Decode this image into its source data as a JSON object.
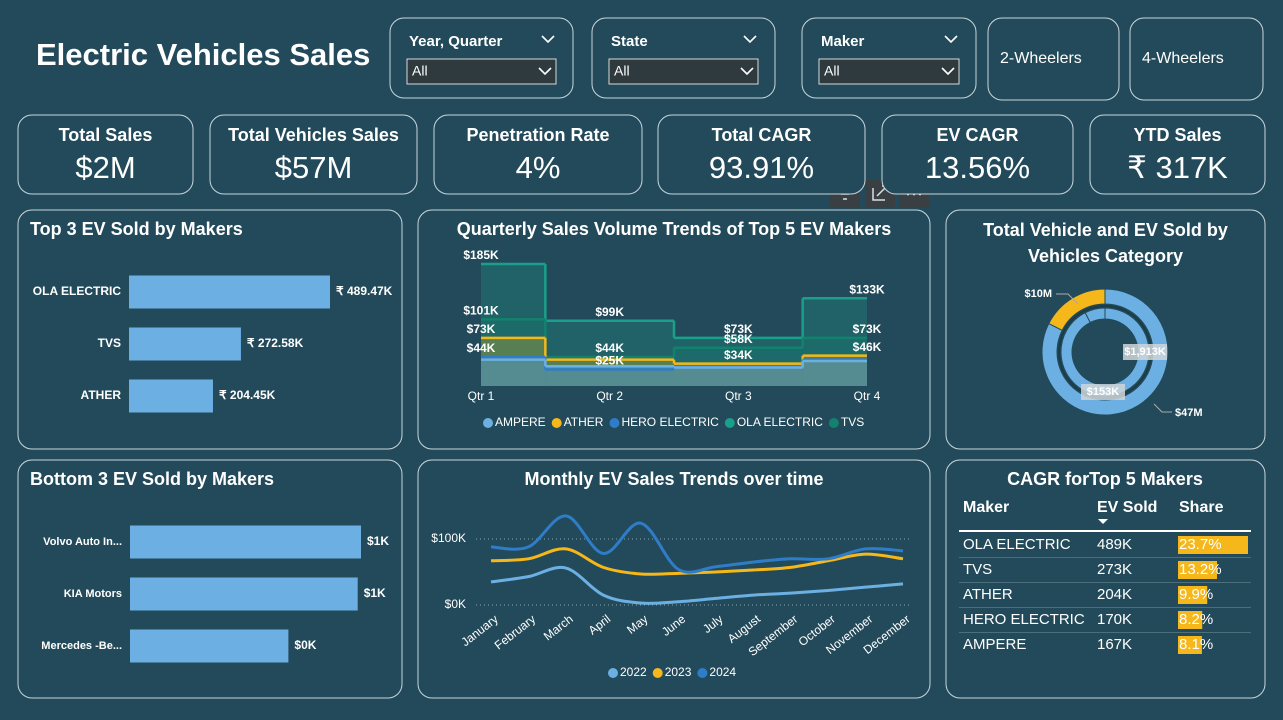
{
  "header": {
    "title": "Electric Vehicles Sales"
  },
  "slicers": [
    {
      "label": "Year, Quarter",
      "value": "All"
    },
    {
      "label": "State",
      "value": "All"
    },
    {
      "label": "Maker",
      "value": "All"
    }
  ],
  "buttons": [
    "2-Wheelers",
    "4-Wheelers"
  ],
  "kpis": [
    {
      "label": "Total Sales",
      "value": "$2M"
    },
    {
      "label": "Total Vehicles Sales",
      "value": "$57M"
    },
    {
      "label": "Penetration Rate",
      "value": "4%"
    },
    {
      "label": "Total CAGR",
      "value": "93.91%"
    },
    {
      "label": "EV CAGR",
      "value": "13.56%"
    },
    {
      "label": "YTD Sales",
      "value": "₹ 317K"
    }
  ],
  "chart_data": [
    {
      "type": "hbar",
      "title": "Top 3 EV Sold by Makers",
      "categories": [
        "OLA ELECTRIC",
        "TVS",
        "ATHER"
      ],
      "values": [
        489470,
        272580,
        204450
      ],
      "value_labels": [
        "₹ 489.47K",
        "₹ 272.58K",
        "₹ 204.45K"
      ],
      "color": "#6cb0e3"
    },
    {
      "type": "hbar",
      "title": "Bottom 3 EV Sold by Makers",
      "categories": [
        "Volvo Auto In...",
        "KIA Motors",
        "Mercedes -Be..."
      ],
      "values": [
        700,
        690,
        480
      ],
      "value_labels": [
        "$1K",
        "$1K",
        "$0K"
      ],
      "color": "#6cb0e3"
    },
    {
      "type": "step-area",
      "title": "Quarterly Sales Volume Trends of Top 5 EV Makers",
      "categories": [
        "Qtr 1",
        "Qtr 2",
        "Qtr 3",
        "Qtr 4"
      ],
      "legend": "bottom",
      "series": [
        {
          "name": "AMPERE",
          "color": "#6cb0e3",
          "values": [
            40000,
            30000,
            28000,
            38000
          ],
          "value_labels": [
            null,
            null,
            null,
            null
          ]
        },
        {
          "name": "ATHER",
          "color": "#f5b719",
          "values": [
            73000,
            40000,
            34000,
            46000
          ],
          "value_labels": [
            "$73K",
            null,
            "$34K",
            "$46K"
          ]
        },
        {
          "name": "HERO ELECTRIC",
          "color": "#2f7dc8",
          "values": [
            44000,
            25000,
            30000,
            40000
          ],
          "value_labels": [
            "$44K",
            "$25K",
            null,
            null
          ]
        },
        {
          "name": "OLA ELECTRIC",
          "color": "#1aa08a",
          "values": [
            185000,
            99000,
            73000,
            133000
          ],
          "value_labels": [
            "$185K",
            "$99K",
            "$73K",
            "$133K"
          ]
        },
        {
          "name": "TVS",
          "color": "#12826e",
          "values": [
            101000,
            44000,
            58000,
            73000
          ],
          "value_labels": [
            "$101K",
            "$44K",
            "$58K",
            "$73K"
          ]
        }
      ]
    },
    {
      "type": "donut",
      "title": "Total Vehicle and EV Sold by Vehicles Category",
      "series": [
        {
          "values": [
            47000000,
            10000000
          ],
          "value_labels": [
            "$47M",
            "$10M"
          ],
          "colors": [
            "#6cb0e3",
            "#f5b719"
          ]
        },
        {
          "values": [
            1913000,
            153000
          ],
          "value_labels": [
            "$1,913K",
            "$153K"
          ],
          "colors": [
            "#6cb0e3",
            "#6cb0e3"
          ]
        }
      ]
    },
    {
      "type": "line",
      "title": "Monthly EV Sales Trends over time",
      "categories": [
        "January",
        "February",
        "March",
        "April",
        "May",
        "June",
        "July",
        "August",
        "September",
        "October",
        "November",
        "December"
      ],
      "ylim": [
        0,
        150000
      ],
      "yticks": [
        {
          "value": 0,
          "label": "$0K"
        },
        {
          "value": 100000,
          "label": "$100K"
        }
      ],
      "grid": true,
      "legend": "bottom",
      "series": [
        {
          "name": "2022",
          "color": "#6cb0e3",
          "values": [
            35000,
            43000,
            56000,
            15000,
            3000,
            5000,
            10000,
            15000,
            18000,
            22000,
            27000,
            32000
          ]
        },
        {
          "name": "2023",
          "color": "#f5b719",
          "values": [
            67000,
            70000,
            85000,
            57000,
            47000,
            48000,
            50000,
            53000,
            57000,
            67000,
            77000,
            70000
          ]
        },
        {
          "name": "2024",
          "color": "#2f7dc8",
          "values": [
            88000,
            88000,
            135000,
            78000,
            124000,
            54000,
            58000,
            65000,
            70000,
            70000,
            85000,
            82000
          ]
        }
      ]
    }
  ],
  "table": {
    "title": "CAGR forTop 5 Makers",
    "columns": [
      "Maker",
      "EV Sold",
      "Share"
    ],
    "bar_color": "#f5b719",
    "rows": [
      {
        "maker": "OLA ELECTRIC",
        "ev_sold": "489K",
        "share": 23.7,
        "share_label": "23.7%"
      },
      {
        "maker": "TVS",
        "ev_sold": "273K",
        "share": 13.2,
        "share_label": "13.2%"
      },
      {
        "maker": "ATHER",
        "ev_sold": "204K",
        "share": 9.9,
        "share_label": "9.9%"
      },
      {
        "maker": "HERO ELECTRIC",
        "ev_sold": "170K",
        "share": 8.2,
        "share_label": "8.2%"
      },
      {
        "maker": "AMPERE",
        "ev_sold": "167K",
        "share": 8.1,
        "share_label": "8.1%"
      }
    ]
  }
}
